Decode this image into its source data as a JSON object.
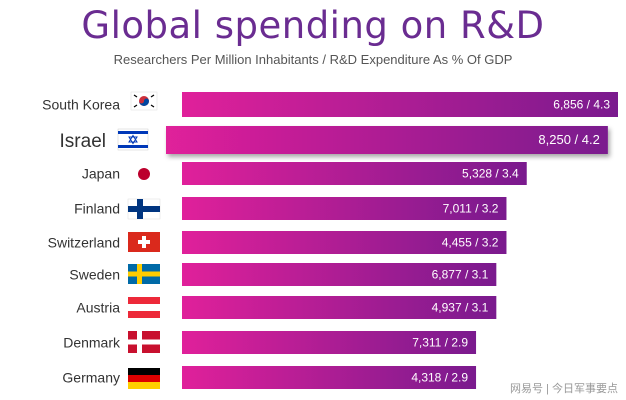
{
  "chart_data": {
    "type": "bar",
    "orientation": "horizontal",
    "title": "Global spending on R&D",
    "subtitle": "Researchers Per Million Inhabitants / R&D Expenditure As % Of GDP",
    "categories": [
      "South Korea",
      "Israel",
      "Japan",
      "Finland",
      "Switzerland",
      "Sweden",
      "Austria",
      "Denmark",
      "Germany"
    ],
    "values": [
      4.3,
      4.2,
      3.4,
      3.2,
      3.2,
      3.1,
      3.1,
      2.9,
      2.9
    ],
    "researchers_per_million": [
      6856,
      8250,
      5328,
      7011,
      4455,
      6877,
      4937,
      7311,
      4318
    ],
    "labels": [
      "6,856 / 4.3",
      "8,250 / 4.2",
      "5,328 / 3.4",
      "7,011 / 3.2",
      "4,455 / 3.2",
      "6,877 / 3.1",
      "4,937 / 3.1",
      "7,311 / 2.9",
      "4,318 / 2.9"
    ],
    "highlight": "Israel",
    "colors": {
      "bar_start": "#e0209a",
      "bar_end": "#7a1a8e",
      "title": "#6a2c91"
    }
  },
  "watermark": "网易号 | 今日军事要点"
}
